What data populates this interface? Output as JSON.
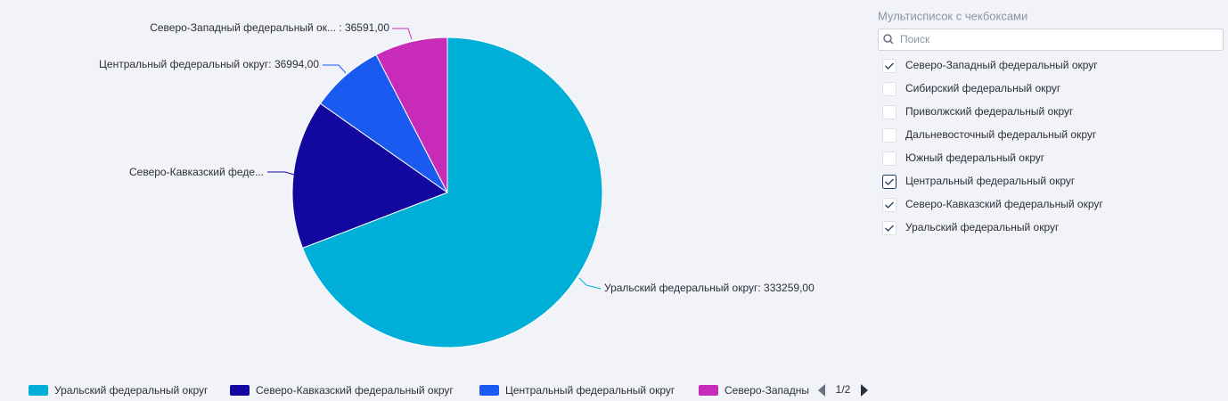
{
  "chart_data": {
    "type": "pie",
    "categories": [
      "Уральский федеральный округ",
      "Северо-Кавказский федеральный округ",
      "Центральный федеральный округ",
      "Северо-Западный федеральный округ"
    ],
    "values": [
      333259,
      75000,
      36994,
      36591
    ],
    "colors": [
      "#00afd7",
      "#12079e",
      "#1a5af0",
      "#c72bb7"
    ],
    "labels": [
      "Уральский федеральный округ: 333259,00",
      "Северо-Кавказский феде...",
      "Центральный федеральный округ: 36994,00",
      "Северо-Западный федеральный ок... : 36591,00"
    ],
    "legend_page": "1/2"
  },
  "filter": {
    "title": "Мультисписок с чекбоксами",
    "search_placeholder": "Поиск",
    "items": [
      {
        "label": "Северо-Западный федеральный округ",
        "checked": true
      },
      {
        "label": "Сибирский федеральный округ",
        "checked": false
      },
      {
        "label": "Приволжский федеральный округ",
        "checked": false
      },
      {
        "label": "Дальневосточный федеральный округ",
        "checked": false
      },
      {
        "label": "Южный федеральный округ",
        "checked": false
      },
      {
        "label": "Центральный федеральный округ",
        "checked": true
      },
      {
        "label": "Северо-Кавказский федеральный округ",
        "checked": true
      },
      {
        "label": "Уральский федеральный округ",
        "checked": true
      }
    ]
  }
}
